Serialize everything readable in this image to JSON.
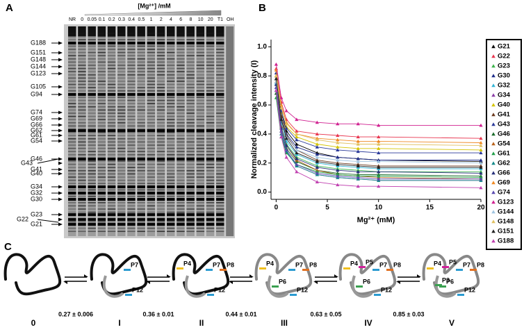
{
  "panel_labels": [
    "A",
    "B",
    "C"
  ],
  "gel": {
    "axis_title": "[Mg²⁺] /mM",
    "lane_labels": [
      "NR",
      "0",
      "0.05",
      "0.1",
      "0.2",
      "0.3",
      "0.4",
      "0.5",
      "1",
      "2",
      "4",
      "6",
      "8",
      "10",
      "20",
      "T1",
      "OH"
    ],
    "band_labels": [
      "G188",
      "G151",
      "G148",
      "G144",
      "G123",
      "G105",
      "G94",
      "G74",
      "G69",
      "G66",
      "G62",
      "G61",
      "G54",
      "G46",
      "G43",
      "G41",
      "G40",
      "G34",
      "G32",
      "G30",
      "G23",
      "G22",
      "G21"
    ]
  },
  "chart_data": {
    "type": "scatter",
    "xlabel": "Mg²⁺ (mM)",
    "ylabel": "Normalized cleavage intensity (I)",
    "x": [
      0,
      0.5,
      1,
      2,
      4,
      6,
      8,
      10,
      20
    ],
    "xlim": [
      -0.5,
      20
    ],
    "ylim": [
      -0.05,
      1.05
    ],
    "xticks": [
      0,
      5,
      10,
      15,
      20
    ],
    "yticks": [
      {
        "value": 0,
        "label": "0.0"
      },
      0.2,
      0.4,
      0.6,
      0.8,
      {
        "value": 1,
        "label": "1.0"
      }
    ],
    "grid": false,
    "legend": "right",
    "series": [
      {
        "name": "G21",
        "color": "#000000",
        "values": [
          0.8,
          0.55,
          0.42,
          0.33,
          0.27,
          0.24,
          0.23,
          0.22,
          0.21
        ]
      },
      {
        "name": "G22",
        "color": "#e8344e",
        "values": [
          0.85,
          0.62,
          0.5,
          0.42,
          0.4,
          0.39,
          0.38,
          0.38,
          0.37
        ]
      },
      {
        "name": "G23",
        "color": "#3cb44b",
        "values": [
          0.7,
          0.45,
          0.33,
          0.24,
          0.18,
          0.16,
          0.15,
          0.14,
          0.14
        ]
      },
      {
        "name": "G30",
        "color": "#1f2d8a",
        "values": [
          0.78,
          0.52,
          0.4,
          0.31,
          0.26,
          0.24,
          0.23,
          0.22,
          0.22
        ]
      },
      {
        "name": "G32",
        "color": "#33b5d6",
        "values": [
          0.75,
          0.48,
          0.35,
          0.26,
          0.2,
          0.18,
          0.17,
          0.16,
          0.16
        ]
      },
      {
        "name": "G34",
        "color": "#8b3fa8",
        "values": [
          0.72,
          0.4,
          0.28,
          0.18,
          0.12,
          0.1,
          0.09,
          0.08,
          0.08
        ]
      },
      {
        "name": "G40",
        "color": "#d4c400",
        "values": [
          0.8,
          0.55,
          0.45,
          0.38,
          0.33,
          0.31,
          0.3,
          0.3,
          0.29
        ]
      },
      {
        "name": "G41",
        "color": "#6b3a1f",
        "values": [
          0.78,
          0.52,
          0.39,
          0.29,
          0.22,
          0.2,
          0.19,
          0.18,
          0.18
        ]
      },
      {
        "name": "G43",
        "color": "#2b3a9a",
        "values": [
          0.82,
          0.56,
          0.44,
          0.36,
          0.31,
          0.29,
          0.28,
          0.27,
          0.27
        ]
      },
      {
        "name": "G46",
        "color": "#1a6b2a",
        "values": [
          0.68,
          0.42,
          0.3,
          0.21,
          0.15,
          0.13,
          0.12,
          0.12,
          0.11
        ]
      },
      {
        "name": "G54",
        "color": "#b8621b",
        "values": [
          0.76,
          0.45,
          0.32,
          0.22,
          0.15,
          0.12,
          0.11,
          0.1,
          0.09
        ]
      },
      {
        "name": "G61",
        "color": "#22a04a",
        "values": [
          0.65,
          0.38,
          0.27,
          0.19,
          0.14,
          0.12,
          0.11,
          0.11,
          0.1
        ]
      },
      {
        "name": "G62",
        "color": "#138a8a",
        "values": [
          0.7,
          0.4,
          0.28,
          0.18,
          0.12,
          0.1,
          0.09,
          0.08,
          0.08
        ]
      },
      {
        "name": "G66",
        "color": "#27307a",
        "values": [
          0.74,
          0.44,
          0.32,
          0.23,
          0.17,
          0.15,
          0.14,
          0.14,
          0.13
        ]
      },
      {
        "name": "G69",
        "color": "#f08a24",
        "values": [
          0.84,
          0.6,
          0.48,
          0.4,
          0.37,
          0.36,
          0.35,
          0.35,
          0.34
        ]
      },
      {
        "name": "G74",
        "color": "#5a4ab0",
        "values": [
          0.72,
          0.42,
          0.29,
          0.19,
          0.13,
          0.11,
          0.1,
          0.09,
          0.09
        ]
      },
      {
        "name": "G123",
        "color": "#d02090",
        "values": [
          0.88,
          0.65,
          0.56,
          0.5,
          0.48,
          0.47,
          0.47,
          0.46,
          0.46
        ]
      },
      {
        "name": "G144",
        "color": "#a0c4e0",
        "values": [
          0.76,
          0.5,
          0.38,
          0.29,
          0.24,
          0.22,
          0.21,
          0.21,
          0.2
        ]
      },
      {
        "name": "G148",
        "color": "#e0c060",
        "values": [
          0.8,
          0.58,
          0.47,
          0.4,
          0.36,
          0.34,
          0.33,
          0.33,
          0.32
        ]
      },
      {
        "name": "G151",
        "color": "#222222",
        "values": [
          0.78,
          0.5,
          0.37,
          0.27,
          0.21,
          0.19,
          0.18,
          0.17,
          0.17
        ]
      },
      {
        "name": "G188",
        "color": "#c040b0",
        "values": [
          0.7,
          0.38,
          0.24,
          0.14,
          0.07,
          0.05,
          0.04,
          0.04,
          0.03
        ]
      }
    ]
  },
  "mechanism": {
    "states": [
      {
        "name": "0",
        "helices": []
      },
      {
        "name": "I",
        "helices": [
          "P7",
          "P12"
        ]
      },
      {
        "name": "II",
        "helices": [
          "P4",
          "P7",
          "P8",
          "P12"
        ]
      },
      {
        "name": "III",
        "helices": [
          "P4",
          "P6",
          "P7",
          "P8",
          "P12"
        ]
      },
      {
        "name": "IV",
        "helices": [
          "P4",
          "P5",
          "P6",
          "P7",
          "P8",
          "P12"
        ]
      },
      {
        "name": "V",
        "helices": [
          "P4",
          "P5",
          "P3",
          "P6",
          "P7",
          "P8",
          "P12"
        ]
      }
    ],
    "rates": [
      "0.27 ± 0.006",
      "0.36 ± 0.01",
      "0.44 ± 0.01",
      "0.63 ± 0.05",
      "0.85 ± 0.03"
    ]
  }
}
